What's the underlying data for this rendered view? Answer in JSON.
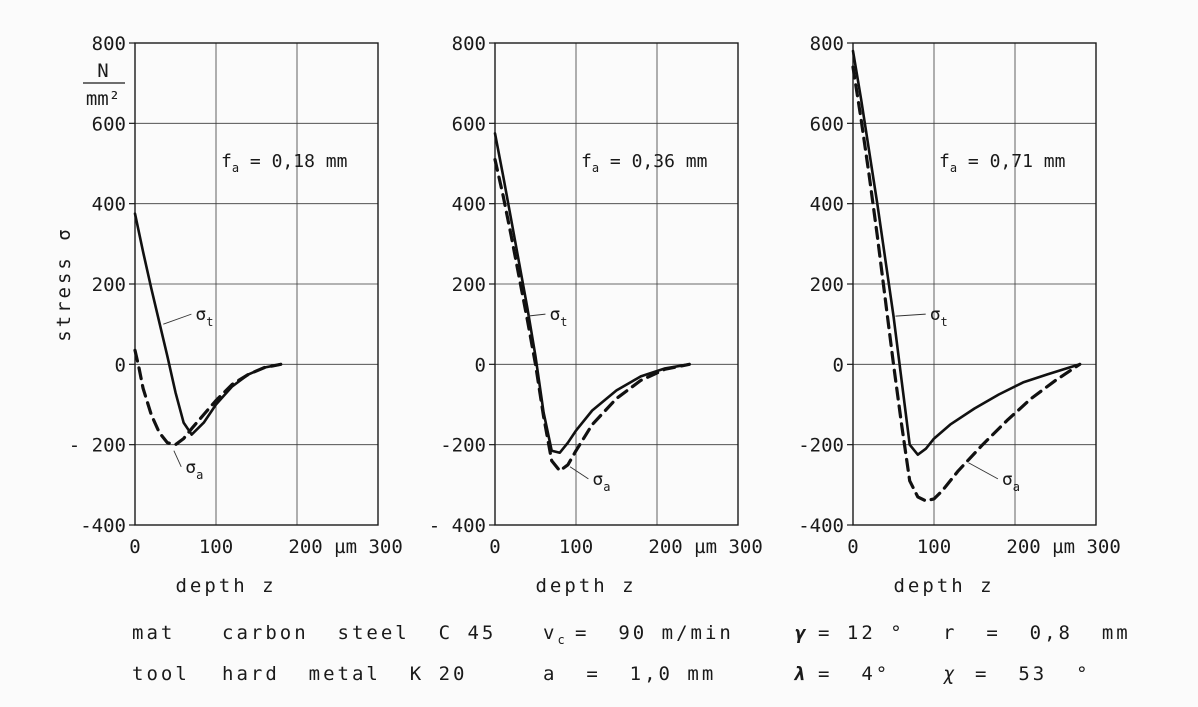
{
  "chart_data": [
    {
      "type": "line",
      "xlabel": "depth z",
      "ylabel": "stress σ",
      "unit_label_top": "N",
      "unit_label_bottom": "mm²",
      "annotation": "f_a = 0,18 mm",
      "xlim": [
        0,
        300
      ],
      "ylim": [
        -400,
        800
      ],
      "xticks": [
        "0",
        "100",
        "200 µm 300"
      ],
      "yticks": [
        "800",
        "600",
        "400",
        "200",
        "0",
        "- 200",
        "-400"
      ],
      "series": [
        {
          "name": "σ_t",
          "style": "solid",
          "x": [
            0,
            10,
            20,
            30,
            40,
            50,
            60,
            70,
            85,
            100,
            120,
            140,
            160,
            180
          ],
          "y": [
            375,
            280,
            190,
            105,
            20,
            -70,
            -145,
            -175,
            -145,
            -100,
            -55,
            -25,
            -8,
            0
          ]
        },
        {
          "name": "σ_a",
          "style": "dashed",
          "x": [
            0,
            5,
            10,
            20,
            30,
            40,
            50,
            60,
            70,
            85,
            100,
            120,
            140,
            160,
            180
          ],
          "y": [
            35,
            -10,
            -60,
            -125,
            -170,
            -195,
            -200,
            -185,
            -160,
            -125,
            -90,
            -50,
            -25,
            -8,
            0
          ]
        }
      ]
    },
    {
      "type": "line",
      "xlabel": "depth z",
      "ylabel": "",
      "annotation": "f_a = 0,36 mm",
      "xlim": [
        0,
        300
      ],
      "ylim": [
        -400,
        800
      ],
      "xticks": [
        "0",
        "100",
        "200 µm 300"
      ],
      "yticks": [
        "800",
        "600",
        "400",
        "200",
        "0",
        "-200",
        "- 400"
      ],
      "series": [
        {
          "name": "σ_t",
          "style": "solid",
          "x": [
            0,
            10,
            20,
            30,
            40,
            50,
            60,
            70,
            80,
            90,
            100,
            120,
            150,
            180,
            210,
            240
          ],
          "y": [
            575,
            470,
            360,
            250,
            140,
            20,
            -120,
            -215,
            -220,
            -195,
            -165,
            -115,
            -65,
            -30,
            -10,
            0
          ]
        },
        {
          "name": "σ_a",
          "style": "dashed",
          "x": [
            0,
            10,
            20,
            30,
            40,
            50,
            60,
            70,
            80,
            90,
            100,
            120,
            150,
            180,
            210,
            240
          ],
          "y": [
            510,
            420,
            320,
            215,
            110,
            0,
            -130,
            -240,
            -265,
            -250,
            -215,
            -150,
            -85,
            -40,
            -12,
            0
          ]
        }
      ]
    },
    {
      "type": "line",
      "xlabel": "depth z",
      "ylabel": "",
      "annotation": "f_a = 0,71 mm",
      "xlim": [
        0,
        300
      ],
      "ylim": [
        -400,
        800
      ],
      "xticks": [
        "0",
        "100",
        "200 µm 300"
      ],
      "yticks": [
        "800",
        "600",
        "400",
        "200",
        "0",
        "-200",
        "-400"
      ],
      "series": [
        {
          "name": "σ_t",
          "style": "solid",
          "x": [
            0,
            10,
            20,
            30,
            40,
            50,
            60,
            70,
            80,
            90,
            100,
            120,
            150,
            180,
            210,
            240,
            280
          ],
          "y": [
            780,
            660,
            530,
            400,
            260,
            120,
            -40,
            -200,
            -225,
            -210,
            -185,
            -150,
            -110,
            -75,
            -45,
            -25,
            0
          ]
        },
        {
          "name": "σ_a",
          "style": "dashed",
          "x": [
            0,
            10,
            20,
            30,
            40,
            50,
            60,
            70,
            80,
            90,
            100,
            110,
            130,
            160,
            190,
            220,
            250,
            280
          ],
          "y": [
            740,
            610,
            470,
            320,
            160,
            0,
            -150,
            -290,
            -330,
            -340,
            -335,
            -315,
            -265,
            -200,
            -140,
            -85,
            -40,
            0
          ]
        }
      ]
    }
  ],
  "footer": {
    "row1": {
      "label": "mat",
      "material": "carbon  steel  C 45",
      "param1": "v",
      "param1_sub": "c",
      "param1_value": "=  90 m/min",
      "param2": "γ",
      "param2_value": "= 12 °",
      "param3": "r  =  0,8  mm"
    },
    "row2": {
      "label": "tool",
      "material": "hard  metal  K 20",
      "param1": "a  =  1,0 mm",
      "param2": "λ",
      "param2_value": "=  4°",
      "param3_sym": "χ",
      "param3_value": "=  53  °"
    }
  }
}
